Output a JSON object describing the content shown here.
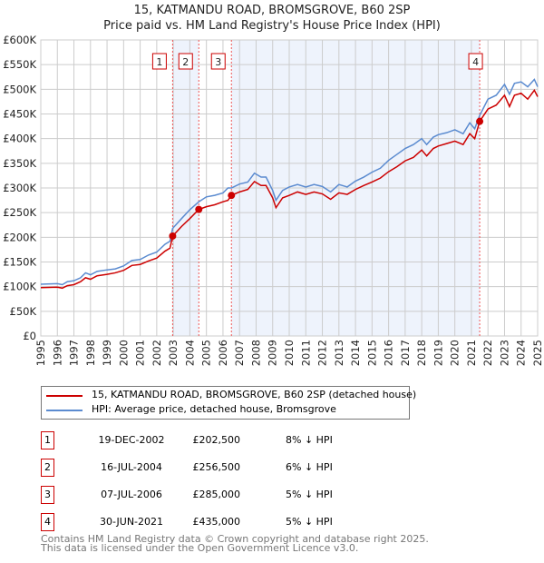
{
  "header": {
    "title": "15, KATMANDU ROAD, BROMSGROVE, B60 2SP",
    "subtitle": "Price paid vs. HM Land Registry's House Price Index (HPI)"
  },
  "chart_data": {
    "type": "line",
    "xlim": [
      1995,
      2025
    ],
    "ylim": [
      0,
      600000
    ],
    "yticks": [
      {
        "v": 0,
        "l": "£0"
      },
      {
        "v": 50000,
        "l": "£50K"
      },
      {
        "v": 100000,
        "l": "£100K"
      },
      {
        "v": 150000,
        "l": "£150K"
      },
      {
        "v": 200000,
        "l": "£200K"
      },
      {
        "v": 250000,
        "l": "£250K"
      },
      {
        "v": 300000,
        "l": "£300K"
      },
      {
        "v": 350000,
        "l": "£350K"
      },
      {
        "v": 400000,
        "l": "£400K"
      },
      {
        "v": 450000,
        "l": "£450K"
      },
      {
        "v": 500000,
        "l": "£500K"
      },
      {
        "v": 550000,
        "l": "£550K"
      },
      {
        "v": 600000,
        "l": "£600K"
      }
    ],
    "xticks": [
      "1995",
      "1996",
      "1997",
      "1998",
      "1999",
      "2000",
      "2001",
      "2002",
      "2003",
      "2004",
      "2005",
      "2006",
      "2007",
      "2008",
      "2009",
      "2010",
      "2011",
      "2012",
      "2013",
      "2014",
      "2015",
      "2016",
      "2017",
      "2018",
      "2019",
      "2020",
      "2021",
      "2022",
      "2023",
      "2024",
      "2025"
    ],
    "grid": true,
    "series": [
      {
        "name": "15, KATMANDU ROAD, BROMSGROVE, B60 2SP (detached house)",
        "color": "#cc0000",
        "points": [
          [
            1995,
            98000
          ],
          [
            1996,
            99000
          ],
          [
            1996.3,
            97000
          ],
          [
            1996.6,
            102000
          ],
          [
            1997,
            104000
          ],
          [
            1997.4,
            110000
          ],
          [
            1997.7,
            118000
          ],
          [
            1998,
            115000
          ],
          [
            1998.4,
            122000
          ],
          [
            1999,
            125000
          ],
          [
            1999.5,
            128000
          ],
          [
            2000,
            133000
          ],
          [
            2000.5,
            143000
          ],
          [
            2001,
            145000
          ],
          [
            2001.5,
            152000
          ],
          [
            2002,
            158000
          ],
          [
            2002.5,
            172000
          ],
          [
            2002.8,
            178000
          ],
          [
            2002.96,
            202500
          ],
          [
            2003.5,
            222000
          ],
          [
            2004,
            238000
          ],
          [
            2004.54,
            256500
          ],
          [
            2005,
            262000
          ],
          [
            2005.5,
            266000
          ],
          [
            2006,
            272000
          ],
          [
            2006.3,
            275000
          ],
          [
            2006.51,
            285000
          ],
          [
            2007,
            292000
          ],
          [
            2007.5,
            297000
          ],
          [
            2007.9,
            313000
          ],
          [
            2008.3,
            305000
          ],
          [
            2008.6,
            305000
          ],
          [
            2009,
            280000
          ],
          [
            2009.2,
            260000
          ],
          [
            2009.6,
            280000
          ],
          [
            2010,
            285000
          ],
          [
            2010.5,
            292000
          ],
          [
            2011,
            287000
          ],
          [
            2011.5,
            292000
          ],
          [
            2012,
            288000
          ],
          [
            2012.5,
            277000
          ],
          [
            2013,
            290000
          ],
          [
            2013.5,
            287000
          ],
          [
            2014,
            297000
          ],
          [
            2014.5,
            305000
          ],
          [
            2015,
            312000
          ],
          [
            2015.5,
            320000
          ],
          [
            2016,
            333000
          ],
          [
            2016.5,
            343000
          ],
          [
            2017,
            355000
          ],
          [
            2017.5,
            362000
          ],
          [
            2018,
            377000
          ],
          [
            2018.3,
            365000
          ],
          [
            2018.7,
            380000
          ],
          [
            2019,
            385000
          ],
          [
            2019.5,
            390000
          ],
          [
            2020,
            395000
          ],
          [
            2020.5,
            388000
          ],
          [
            2020.9,
            410000
          ],
          [
            2021.2,
            400000
          ],
          [
            2021.5,
            435000
          ],
          [
            2022,
            460000
          ],
          [
            2022.5,
            468000
          ],
          [
            2023,
            488000
          ],
          [
            2023.3,
            465000
          ],
          [
            2023.6,
            488000
          ],
          [
            2024,
            492000
          ],
          [
            2024.4,
            480000
          ],
          [
            2024.8,
            498000
          ],
          [
            2025,
            485000
          ]
        ]
      },
      {
        "name": "HPI: Average price, detached house, Bromsgrove",
        "color": "#5b8bd0",
        "points": [
          [
            1995,
            105000
          ],
          [
            1996,
            106000
          ],
          [
            1996.3,
            104000
          ],
          [
            1996.6,
            110000
          ],
          [
            1997,
            112000
          ],
          [
            1997.4,
            118000
          ],
          [
            1997.7,
            128000
          ],
          [
            1998,
            124000
          ],
          [
            1998.4,
            131000
          ],
          [
            1999,
            134000
          ],
          [
            1999.5,
            136000
          ],
          [
            2000,
            142000
          ],
          [
            2000.5,
            153000
          ],
          [
            2001,
            155000
          ],
          [
            2001.5,
            164000
          ],
          [
            2002,
            170000
          ],
          [
            2002.5,
            186000
          ],
          [
            2002.8,
            192000
          ],
          [
            2002.96,
            218000
          ],
          [
            2003.5,
            238000
          ],
          [
            2004,
            256000
          ],
          [
            2004.54,
            272000
          ],
          [
            2005,
            282000
          ],
          [
            2005.5,
            285000
          ],
          [
            2006,
            290000
          ],
          [
            2006.3,
            300000
          ],
          [
            2006.51,
            300000
          ],
          [
            2007,
            308000
          ],
          [
            2007.5,
            312000
          ],
          [
            2007.9,
            330000
          ],
          [
            2008.3,
            322000
          ],
          [
            2008.6,
            322000
          ],
          [
            2009,
            295000
          ],
          [
            2009.2,
            275000
          ],
          [
            2009.6,
            295000
          ],
          [
            2010,
            302000
          ],
          [
            2010.5,
            307000
          ],
          [
            2011,
            302000
          ],
          [
            2011.5,
            307000
          ],
          [
            2012,
            303000
          ],
          [
            2012.5,
            292000
          ],
          [
            2013,
            307000
          ],
          [
            2013.5,
            302000
          ],
          [
            2014,
            314000
          ],
          [
            2014.5,
            322000
          ],
          [
            2015,
            332000
          ],
          [
            2015.5,
            340000
          ],
          [
            2016,
            356000
          ],
          [
            2016.5,
            368000
          ],
          [
            2017,
            380000
          ],
          [
            2017.5,
            388000
          ],
          [
            2018,
            400000
          ],
          [
            2018.3,
            388000
          ],
          [
            2018.7,
            403000
          ],
          [
            2019,
            408000
          ],
          [
            2019.5,
            412000
          ],
          [
            2020,
            418000
          ],
          [
            2020.5,
            410000
          ],
          [
            2020.9,
            432000
          ],
          [
            2021.2,
            420000
          ],
          [
            2021.5,
            447000
          ],
          [
            2022,
            480000
          ],
          [
            2022.5,
            488000
          ],
          [
            2023,
            510000
          ],
          [
            2023.3,
            490000
          ],
          [
            2023.6,
            512000
          ],
          [
            2024,
            515000
          ],
          [
            2024.4,
            505000
          ],
          [
            2024.8,
            520000
          ],
          [
            2025,
            505000
          ]
        ]
      }
    ],
    "sales": [
      {
        "n": "1",
        "x": 2002.96,
        "y": 202500
      },
      {
        "n": "2",
        "x": 2004.54,
        "y": 256500
      },
      {
        "n": "3",
        "x": 2006.51,
        "y": 285000
      },
      {
        "n": "4",
        "x": 2021.5,
        "y": 435000
      }
    ],
    "shaded_ranges": [
      [
        2002.96,
        2004.54
      ],
      [
        2006.51,
        2021.5
      ]
    ],
    "legend": "bottom"
  },
  "table": [
    {
      "n": "1",
      "date": "19-DEC-2002",
      "price": "£202,500",
      "hpi": "8% ↓ HPI"
    },
    {
      "n": "2",
      "date": "16-JUL-2004",
      "price": "£256,500",
      "hpi": "6% ↓ HPI"
    },
    {
      "n": "3",
      "date": "07-JUL-2006",
      "price": "£285,000",
      "hpi": "5% ↓ HPI"
    },
    {
      "n": "4",
      "date": "30-JUN-2021",
      "price": "£435,000",
      "hpi": "5% ↓ HPI"
    }
  ],
  "footer": {
    "line1": "Contains HM Land Registry data © Crown copyright and database right 2025.",
    "line2": "This data is licensed under the Open Government Licence v3.0."
  }
}
